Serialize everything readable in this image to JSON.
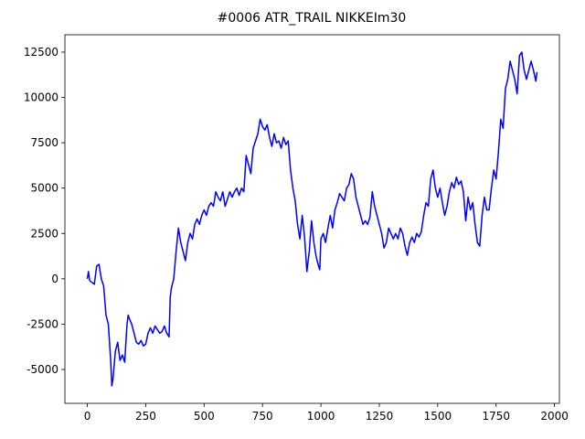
{
  "chart_data": {
    "type": "line",
    "title": "#0006 ATR_TRAIL NIKKEIm30",
    "x": [
      0,
      5,
      10,
      20,
      30,
      40,
      50,
      60,
      70,
      80,
      90,
      100,
      105,
      110,
      120,
      130,
      140,
      150,
      160,
      170,
      175,
      180,
      190,
      200,
      210,
      220,
      230,
      240,
      250,
      260,
      270,
      280,
      290,
      300,
      310,
      320,
      330,
      340,
      350,
      355,
      360,
      370,
      380,
      390,
      400,
      410,
      420,
      430,
      440,
      450,
      460,
      470,
      480,
      490,
      500,
      510,
      520,
      530,
      540,
      550,
      560,
      570,
      580,
      590,
      600,
      610,
      620,
      630,
      640,
      650,
      660,
      670,
      680,
      690,
      700,
      710,
      720,
      730,
      740,
      750,
      760,
      770,
      780,
      790,
      800,
      810,
      820,
      830,
      840,
      850,
      860,
      870,
      880,
      890,
      900,
      910,
      920,
      930,
      940,
      950,
      960,
      970,
      980,
      990,
      995,
      1000,
      1010,
      1020,
      1030,
      1040,
      1050,
      1060,
      1070,
      1080,
      1090,
      1100,
      1110,
      1120,
      1130,
      1140,
      1150,
      1160,
      1170,
      1180,
      1190,
      1200,
      1210,
      1220,
      1230,
      1240,
      1250,
      1260,
      1270,
      1280,
      1290,
      1300,
      1310,
      1320,
      1330,
      1340,
      1350,
      1360,
      1370,
      1380,
      1390,
      1400,
      1410,
      1420,
      1430,
      1440,
      1450,
      1460,
      1470,
      1480,
      1490,
      1500,
      1510,
      1520,
      1530,
      1540,
      1550,
      1560,
      1570,
      1580,
      1590,
      1600,
      1610,
      1620,
      1630,
      1640,
      1650,
      1660,
      1670,
      1680,
      1690,
      1700,
      1710,
      1720,
      1730,
      1740,
      1750,
      1760,
      1770,
      1780,
      1790,
      1800,
      1810,
      1820,
      1830,
      1840,
      1850,
      1860,
      1870,
      1880,
      1890,
      1900,
      1910,
      1920,
      1925
    ],
    "series": [
      {
        "color": "#0000ff",
        "values": [
          0,
          400,
          -100,
          -200,
          -300,
          700,
          800,
          0,
          -400,
          -2000,
          -2500,
          -4500,
          -5900,
          -5500,
          -4000,
          -3500,
          -4500,
          -4200,
          -4600,
          -2500,
          -2000,
          -2200,
          -2500,
          -3000,
          -3500,
          -3600,
          -3400,
          -3700,
          -3600,
          -3000,
          -2700,
          -3000,
          -2600,
          -2800,
          -3000,
          -2900,
          -2600,
          -3000,
          -3200,
          -1000,
          -500,
          0,
          1500,
          2800,
          2000,
          1500,
          1000,
          2000,
          2500,
          2200,
          3000,
          3300,
          3000,
          3500,
          3800,
          3500,
          4000,
          4200,
          4000,
          4800,
          4500,
          4300,
          4800,
          4000,
          4400,
          4800,
          4500,
          4800,
          5000,
          4600,
          5000,
          4800,
          6800,
          6300,
          5800,
          7200,
          7600,
          8000,
          8800,
          8400,
          8200,
          8500,
          7800,
          7300,
          8000,
          7500,
          7600,
          7200,
          7800,
          7400,
          7600,
          6000,
          5000,
          4300,
          3000,
          2200,
          3500,
          2300,
          400,
          1500,
          3200,
          2000,
          1200,
          700,
          500,
          2200,
          2500,
          2000,
          2800,
          3500,
          2800,
          3800,
          4200,
          4700,
          4500,
          4300,
          5000,
          5200,
          5800,
          5500,
          4500,
          4000,
          3500,
          3000,
          3200,
          3000,
          3400,
          4800,
          4000,
          3500,
          3000,
          2500,
          1700,
          2000,
          2800,
          2500,
          2200,
          2500,
          2200,
          2800,
          2500,
          1800,
          1300,
          2000,
          2300,
          2000,
          2500,
          2300,
          2600,
          3500,
          4200,
          4000,
          5500,
          6000,
          5000,
          4500,
          5000,
          4200,
          3500,
          4000,
          4800,
          5300,
          5000,
          5600,
          5200,
          5400,
          4800,
          3200,
          4500,
          3800,
          4200,
          3000,
          2000,
          1800,
          3500,
          4500,
          3800,
          3800,
          5000,
          6000,
          5500,
          7000,
          8800,
          8300,
          10500,
          11000,
          12000,
          11500,
          11000,
          10200,
          12300,
          12500,
          11500,
          11000,
          11500,
          12000,
          11500,
          10900,
          11400
        ]
      }
    ],
    "xlim": [
      -96,
      2021
    ],
    "ylim": [
      -6866,
      13458
    ],
    "xticks": [
      0,
      250,
      500,
      750,
      1000,
      1250,
      1500,
      1750,
      2000
    ],
    "yticks": [
      -5000,
      -2500,
      0,
      2500,
      5000,
      7500,
      10000,
      12500
    ]
  }
}
